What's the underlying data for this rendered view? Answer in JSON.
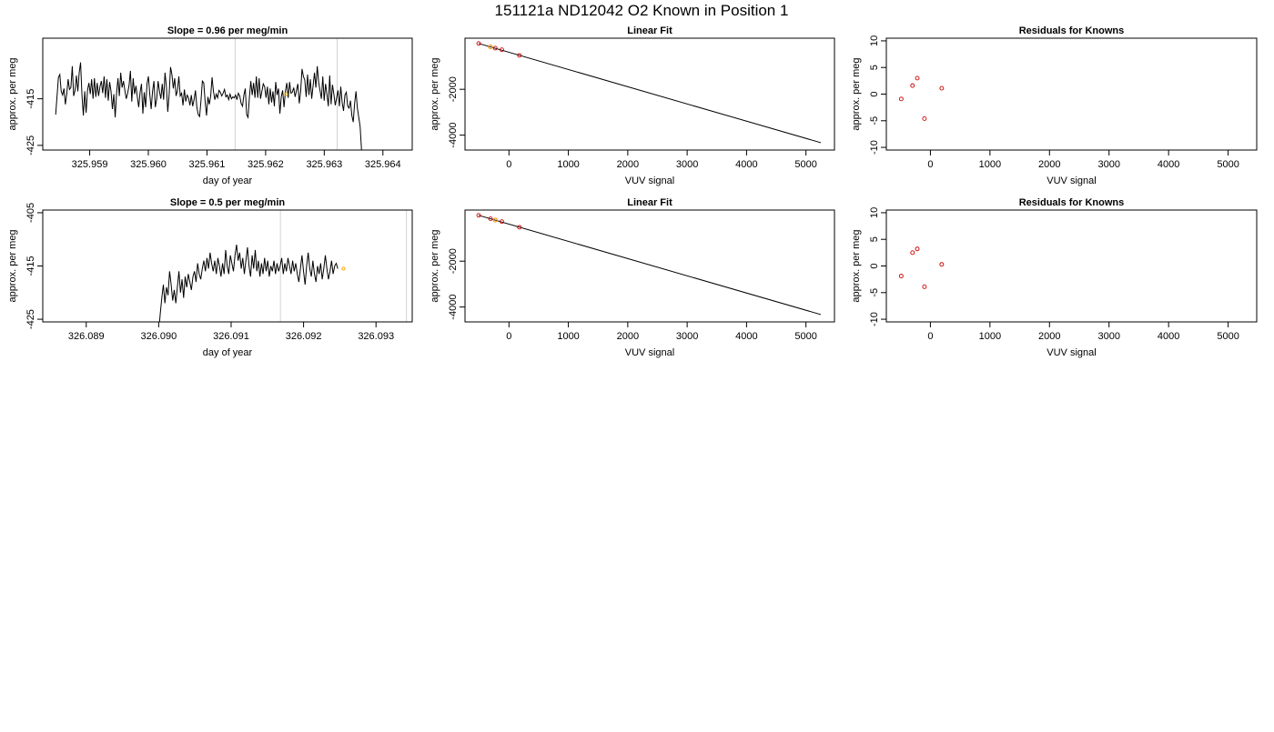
{
  "figure": {
    "title": "151121a     ND12042   O2 Known in Position  1"
  },
  "chart_data": [
    {
      "type": "line",
      "title": "Slope =  0.96  per meg/min",
      "xlabel": "day of year",
      "ylabel": "approx. per meg",
      "xlim": [
        325.9582,
        325.9645
      ],
      "ylim": [
        -426,
        -402
      ],
      "x_ticks": [
        {
          "value": 325.959,
          "label": "325.959"
        },
        {
          "value": 325.96,
          "label": "325.960"
        },
        {
          "value": 325.961,
          "label": "325.961"
        },
        {
          "value": 325.962,
          "label": "325.962"
        },
        {
          "value": 325.963,
          "label": "325.963"
        },
        {
          "value": 325.964,
          "label": "325.964"
        }
      ],
      "y_ticks": [
        {
          "value": -415,
          "label": "-415"
        },
        {
          "value": -425,
          "label": "-425"
        }
      ],
      "vlines": [
        325.96148,
        325.96322
      ],
      "marker": {
        "x": 325.96235,
        "y": -414.0
      },
      "line_color": "#000000",
      "vline_color": "#d3d3d3",
      "marker_color": "#ffa500",
      "series": [
        {
          "x_start": 325.95842,
          "x_step": 2.36e-05,
          "y": [
            -418.4,
            -414.4,
            -410.4,
            -409.8,
            -413.4,
            -414.2,
            -412.8,
            -416.2,
            -414.0,
            -410.8,
            -413.0,
            -412.6,
            -408.0,
            -414.4,
            -413.2,
            -410.0,
            -413.4,
            -409.4,
            -407.2,
            -414.2,
            -418.6,
            -413.4,
            -418.0,
            -413.2,
            -411.6,
            -414.0,
            -410.8,
            -415.0,
            -410.6,
            -414.6,
            -411.6,
            -414.4,
            -412.4,
            -411.2,
            -413.8,
            -410.2,
            -414.8,
            -410.8,
            -415.4,
            -411.4,
            -413.4,
            -417.2,
            -414.0,
            -419.0,
            -413.8,
            -410.6,
            -414.4,
            -409.4,
            -412.6,
            -411.2,
            -413.2,
            -415.0,
            -413.8,
            -412.2,
            -409.0,
            -415.6,
            -410.6,
            -414.0,
            -412.2,
            -414.6,
            -416.8,
            -413.6,
            -411.8,
            -418.2,
            -413.6,
            -416.8,
            -411.8,
            -410.2,
            -414.0,
            -417.2,
            -413.4,
            -411.2,
            -416.8,
            -415.0,
            -411.2,
            -413.4,
            -415.0,
            -411.8,
            -415.2,
            -409.4,
            -412.4,
            -417.8,
            -414.0,
            -408.2,
            -409.8,
            -412.8,
            -410.6,
            -414.4,
            -413.2,
            -410.2,
            -414.4,
            -413.8,
            -416.4,
            -413.0,
            -415.6,
            -414.2,
            -414.8,
            -416.4,
            -414.2,
            -416.6,
            -415.2,
            -413.2,
            -416.8,
            -418.4,
            -418.8,
            -415.4,
            -411.2,
            -411.6,
            -415.6,
            -418.6,
            -414.6,
            -416.2,
            -414.4,
            -410.4,
            -413.4,
            -415.2,
            -414.0,
            -414.8,
            -413.2,
            -413.6,
            -414.4,
            -413.8,
            -413.0,
            -414.6,
            -414.2,
            -415.2,
            -414.0,
            -415.0,
            -414.6,
            -414.8,
            -414.2,
            -415.2,
            -413.8,
            -414.4,
            -416.0,
            -416.6,
            -414.2,
            -412.8,
            -418.4,
            -419.0,
            -414.6,
            -411.2,
            -414.2,
            -411.6,
            -414.8,
            -410.2,
            -414.8,
            -410.6,
            -415.0,
            -413.4,
            -411.8,
            -412.4,
            -414.8,
            -412.4,
            -416.2,
            -412.8,
            -415.8,
            -413.4,
            -416.6,
            -411.4,
            -414.2,
            -412.8,
            -418.2,
            -414.6,
            -413.2,
            -416.8,
            -413.4,
            -411.6,
            -414.8,
            -411.4,
            -413.8,
            -413.6,
            -412.6,
            -414.6,
            -413.2,
            -411.8,
            -416.0,
            -413.4,
            -408.6,
            -410.2,
            -411.0,
            -414.6,
            -409.8,
            -414.2,
            -410.8,
            -415.0,
            -412.2,
            -409.4,
            -412.6,
            -408.0,
            -411.4,
            -413.2,
            -415.0,
            -410.2,
            -415.4,
            -411.8,
            -414.0,
            -416.6,
            -410.0,
            -416.2,
            -412.0,
            -414.0,
            -416.4,
            -414.8,
            -413.2,
            -416.6,
            -412.4,
            -415.8,
            -417.6,
            -414.2,
            -413.6,
            -416.6,
            -417.0,
            -415.4,
            -418.6,
            -420.0,
            -416.0,
            -413.4,
            -417.0,
            -419.0,
            -421.0,
            -426.0
          ]
        }
      ]
    },
    {
      "type": "scatter",
      "title": "Linear Fit",
      "xlabel": "VUV signal",
      "ylabel": "approx. per meg",
      "xlim": [
        -740,
        5480
      ],
      "ylim": [
        -4650,
        230
      ],
      "x_ticks": [
        {
          "value": 0,
          "label": "0"
        },
        {
          "value": 1000,
          "label": "1000"
        },
        {
          "value": 2000,
          "label": "2000"
        },
        {
          "value": 3000,
          "label": "3000"
        },
        {
          "value": 4000,
          "label": "4000"
        },
        {
          "value": 5000,
          "label": "5000"
        }
      ],
      "y_ticks": [
        {
          "value": -2000,
          "label": "-2000"
        },
        {
          "value": -4000,
          "label": "-4000"
        }
      ],
      "fit_line": {
        "x": [
          -510,
          5250
        ],
        "y": [
          0,
          -4330
        ]
      },
      "points_color": "#cc0000",
      "line_color": "#000000",
      "highlight_color": "#ffa500",
      "points": [
        {
          "x": -510,
          "y": 0
        },
        {
          "x": -310,
          "y": -150
        },
        {
          "x": -230,
          "y": -205
        },
        {
          "x": -120,
          "y": -275
        },
        {
          "x": 175,
          "y": -520
        }
      ],
      "highlight": {
        "x": -310,
        "y": -150
      }
    },
    {
      "type": "scatter",
      "title": "Residuals for Knowns",
      "xlabel": "VUV signal",
      "ylabel": "approx. per meg",
      "xlim": [
        -740,
        5480
      ],
      "ylim": [
        -10.5,
        10.5
      ],
      "x_ticks": [
        {
          "value": 0,
          "label": "0"
        },
        {
          "value": 1000,
          "label": "1000"
        },
        {
          "value": 2000,
          "label": "2000"
        },
        {
          "value": 3000,
          "label": "3000"
        },
        {
          "value": 4000,
          "label": "4000"
        },
        {
          "value": 5000,
          "label": "5000"
        }
      ],
      "y_ticks": [
        {
          "value": 10,
          "label": "10"
        },
        {
          "value": 5,
          "label": "5"
        },
        {
          "value": 0,
          "label": "0"
        },
        {
          "value": -5,
          "label": "-5"
        },
        {
          "value": -10,
          "label": "-10"
        }
      ],
      "points_color": "#cc0000",
      "points": [
        {
          "x": -490,
          "y": -0.9
        },
        {
          "x": -300,
          "y": 1.6
        },
        {
          "x": -220,
          "y": 3.0
        },
        {
          "x": -100,
          "y": -4.6
        },
        {
          "x": 190,
          "y": 1.1
        }
      ]
    },
    {
      "type": "line",
      "title": "Slope =  0.5  per meg/min",
      "xlabel": "day of year",
      "ylabel": "approx. per meg",
      "xlim": [
        326.0884,
        326.0935
      ],
      "ylim": [
        -425.5,
        -404.5
      ],
      "x_ticks": [
        {
          "value": 326.089,
          "label": "326.089"
        },
        {
          "value": 326.09,
          "label": "326.090"
        },
        {
          "value": 326.091,
          "label": "326.091"
        },
        {
          "value": 326.092,
          "label": "326.092"
        },
        {
          "value": 326.093,
          "label": "326.093"
        }
      ],
      "y_ticks": [
        {
          "value": -405,
          "label": "-405"
        },
        {
          "value": -415,
          "label": "-415"
        },
        {
          "value": -425,
          "label": "-425"
        }
      ],
      "vlines": [
        326.09168,
        326.09342
      ],
      "marker": {
        "x": 326.09255,
        "y": -415.5
      },
      "line_color": "#000000",
      "vline_color": "#d3d3d3",
      "marker_color": "#ffa500",
      "series": [
        {
          "x_start": 326.09,
          "x_step": 2.15e-05,
          "y": [
            -427.5,
            -424.0,
            -421.0,
            -418.5,
            -422.0,
            -419.0,
            -420.5,
            -416.0,
            -418.5,
            -421.5,
            -419.5,
            -422.0,
            -419.0,
            -416.0,
            -420.0,
            -417.5,
            -421.0,
            -417.0,
            -419.0,
            -416.5,
            -418.0,
            -419.5,
            -417.0,
            -416.0,
            -418.0,
            -414.5,
            -416.5,
            -417.5,
            -415.5,
            -414.0,
            -416.0,
            -413.5,
            -415.5,
            -412.5,
            -414.5,
            -416.0,
            -414.0,
            -416.5,
            -413.5,
            -415.0,
            -417.0,
            -414.5,
            -416.5,
            -412.0,
            -415.0,
            -416.5,
            -413.0,
            -414.5,
            -416.0,
            -413.0,
            -411.0,
            -414.0,
            -412.5,
            -415.5,
            -413.5,
            -416.5,
            -414.0,
            -411.5,
            -415.0,
            -417.0,
            -413.0,
            -415.5,
            -412.0,
            -416.0,
            -414.0,
            -417.0,
            -414.5,
            -416.5,
            -413.5,
            -416.0,
            -414.0,
            -417.0,
            -415.0,
            -416.0,
            -414.0,
            -416.5,
            -414.5,
            -416.0,
            -415.0,
            -413.5,
            -416.5,
            -414.5,
            -416.0,
            -413.5,
            -415.0,
            -416.5,
            -414.0,
            -416.0,
            -414.5,
            -416.5,
            -418.0,
            -415.5,
            -413.0,
            -416.0,
            -418.5,
            -415.0,
            -412.5,
            -415.5,
            -417.0,
            -414.0,
            -416.5,
            -418.0,
            -415.0,
            -416.5,
            -414.5,
            -417.5,
            -415.5,
            -413.0,
            -415.5,
            -417.5,
            -416.0,
            -414.0,
            -416.5,
            -415.0,
            -414.5,
            -415.5
          ]
        }
      ]
    },
    {
      "type": "scatter",
      "title": "Linear Fit",
      "xlabel": "VUV signal",
      "ylabel": "approx. per meg",
      "xlim": [
        -740,
        5480
      ],
      "ylim": [
        -4650,
        230
      ],
      "x_ticks": [
        {
          "value": 0,
          "label": "0"
        },
        {
          "value": 1000,
          "label": "1000"
        },
        {
          "value": 2000,
          "label": "2000"
        },
        {
          "value": 3000,
          "label": "3000"
        },
        {
          "value": 4000,
          "label": "4000"
        },
        {
          "value": 5000,
          "label": "5000"
        }
      ],
      "y_ticks": [
        {
          "value": -2000,
          "label": "-2000"
        },
        {
          "value": -4000,
          "label": "-4000"
        }
      ],
      "fit_line": {
        "x": [
          -510,
          5250
        ],
        "y": [
          0,
          -4330
        ]
      },
      "points_color": "#cc0000",
      "line_color": "#000000",
      "highlight_color": "#ffa500",
      "points": [
        {
          "x": -510,
          "y": 0
        },
        {
          "x": -310,
          "y": -150
        },
        {
          "x": -230,
          "y": -205
        },
        {
          "x": -120,
          "y": -275
        },
        {
          "x": 175,
          "y": -520
        }
      ],
      "highlight": {
        "x": -230,
        "y": -205
      }
    },
    {
      "type": "scatter",
      "title": "Residuals for Knowns",
      "xlabel": "VUV signal",
      "ylabel": "approx. per meg",
      "xlim": [
        -740,
        5480
      ],
      "ylim": [
        -10.5,
        10.5
      ],
      "x_ticks": [
        {
          "value": 0,
          "label": "0"
        },
        {
          "value": 1000,
          "label": "1000"
        },
        {
          "value": 2000,
          "label": "2000"
        },
        {
          "value": 3000,
          "label": "3000"
        },
        {
          "value": 4000,
          "label": "4000"
        },
        {
          "value": 5000,
          "label": "5000"
        }
      ],
      "y_ticks": [
        {
          "value": 10,
          "label": "10"
        },
        {
          "value": 5,
          "label": "5"
        },
        {
          "value": 0,
          "label": "0"
        },
        {
          "value": -5,
          "label": "-5"
        },
        {
          "value": -10,
          "label": "-10"
        }
      ],
      "points_color": "#cc0000",
      "points": [
        {
          "x": -490,
          "y": -1.9
        },
        {
          "x": -300,
          "y": 2.5
        },
        {
          "x": -220,
          "y": 3.2
        },
        {
          "x": -100,
          "y": -3.9
        },
        {
          "x": 190,
          "y": 0.3
        }
      ]
    }
  ]
}
